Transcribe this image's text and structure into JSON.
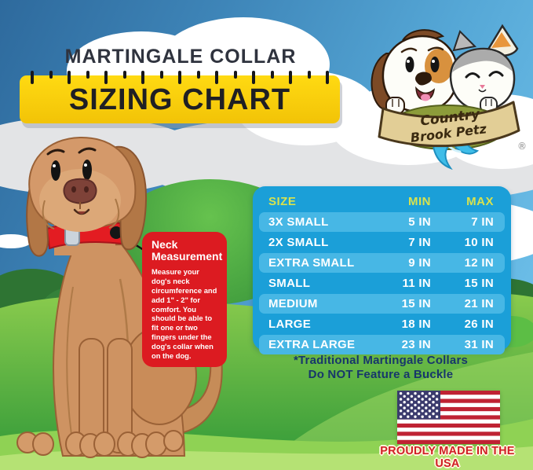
{
  "header": {
    "title_line": "MARTINGALE COLLAR",
    "ruler_label": "SIZING CHART"
  },
  "logo": {
    "brand_line1": "Country",
    "brand_line2": "Brook Petz",
    "registered_mark": "®"
  },
  "callout": {
    "heading_line1": "Neck",
    "heading_line2": "Measurement",
    "body": "Measure your dog's neck circumference and add 1\" - 2\" for comfort. You should be able to fit one or two fingers under the dog's collar when on the dog."
  },
  "sizing_table": {
    "headers": {
      "size": "SIZE",
      "min": "MIN",
      "max": "MAX"
    },
    "rows": [
      {
        "size": "3X SMALL",
        "min": "5 IN",
        "max": "7 IN"
      },
      {
        "size": "2X SMALL",
        "min": "7 IN",
        "max": "10 IN"
      },
      {
        "size": "EXTRA SMALL",
        "min": "9 IN",
        "max": "12 IN"
      },
      {
        "size": "SMALL",
        "min": "11 IN",
        "max": "15 IN"
      },
      {
        "size": "MEDIUM",
        "min": "15 IN",
        "max": "21 IN"
      },
      {
        "size": "LARGE",
        "min": "18 IN",
        "max": "26 IN"
      },
      {
        "size": "EXTRA LARGE",
        "min": "23 IN",
        "max": "31 IN"
      }
    ]
  },
  "footnote": {
    "line1": "*Traditional Martingale Collars",
    "line2": "Do NOT Feature a Buckle"
  },
  "made_in_usa": {
    "label": "PROUDLY MADE IN THE USA"
  },
  "chart_data": {
    "type": "table",
    "title": "Martingale Collar Sizing Chart",
    "columns": [
      "SIZE",
      "MIN",
      "MAX"
    ],
    "rows": [
      [
        "3X SMALL",
        "5 IN",
        "7 IN"
      ],
      [
        "2X SMALL",
        "7 IN",
        "10 IN"
      ],
      [
        "EXTRA SMALL",
        "9 IN",
        "12 IN"
      ],
      [
        "SMALL",
        "11 IN",
        "15 IN"
      ],
      [
        "MEDIUM",
        "15 IN",
        "21 IN"
      ],
      [
        "LARGE",
        "18 IN",
        "26 IN"
      ],
      [
        "EXTRA LARGE",
        "23 IN",
        "31 IN"
      ]
    ],
    "units": "inches",
    "sizes": [
      "3X SMALL",
      "2X SMALL",
      "EXTRA SMALL",
      "SMALL",
      "MEDIUM",
      "LARGE",
      "EXTRA LARGE"
    ],
    "min_in": [
      5,
      7,
      9,
      11,
      15,
      18,
      23
    ],
    "max_in": [
      7,
      10,
      12,
      15,
      21,
      26,
      31
    ]
  },
  "colors": {
    "table_bg": "#1B9FD8",
    "table_row_stripe": "#47B7E5",
    "table_header_text": "#D8E24E",
    "ruler_yellow": "#FFD60F",
    "callout_red": "#DC1B21",
    "footnote_navy": "#17366B",
    "usa_red": "#D01F26",
    "collar_red": "#E31C22",
    "grass_green": "#5BBE45",
    "sky_blue": "#4E9FD2"
  }
}
